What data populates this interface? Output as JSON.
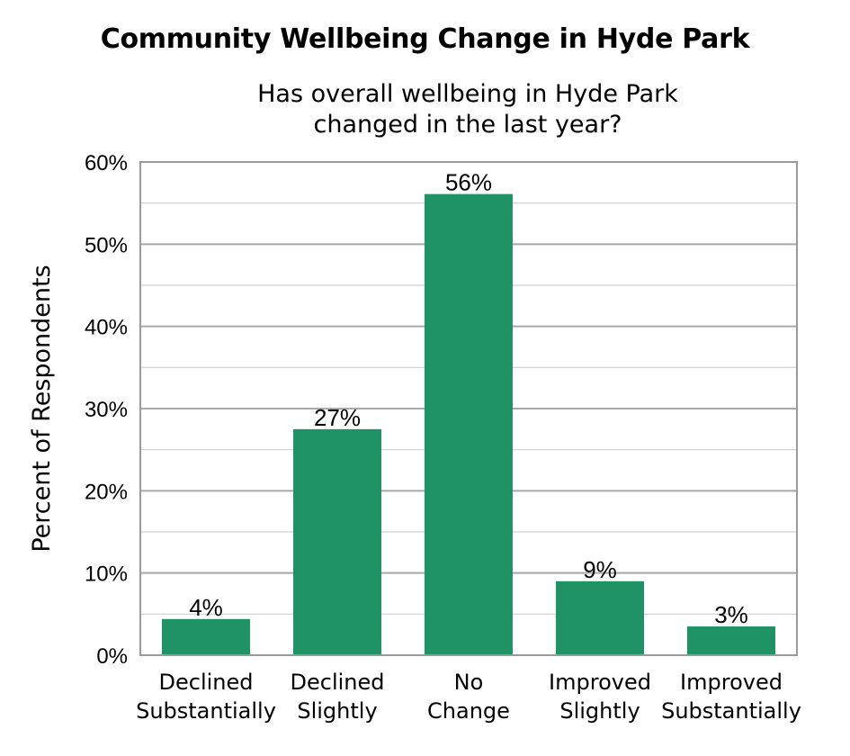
{
  "chart_data": {
    "type": "bar",
    "title": "Community Wellbeing Change in Hyde Park",
    "subtitle_lines": [
      "Has overall wellbeing in Hyde Park",
      "changed in the last year?"
    ],
    "ylabel": "Percent of Respondents",
    "xlabel": "",
    "categories": [
      [
        "Declined",
        "Substantially"
      ],
      [
        "Declined",
        "Slightly"
      ],
      [
        "No",
        "Change"
      ],
      [
        "Improved",
        "Slightly"
      ],
      [
        "Improved",
        "Substantially"
      ]
    ],
    "values": [
      4.4,
      27.5,
      56.1,
      9.0,
      3.5
    ],
    "data_labels": [
      "4%",
      "27%",
      "56%",
      "9%",
      "3%"
    ],
    "ylim": [
      0,
      60
    ],
    "yticks": [
      0,
      10,
      20,
      30,
      40,
      50,
      60
    ],
    "ytick_labels": [
      "0%",
      "10%",
      "20%",
      "30%",
      "40%",
      "50%",
      "60%"
    ],
    "grid": true,
    "legend": "none",
    "bar_color": "#1f9266",
    "gridline_color": "#b3b3b3"
  }
}
